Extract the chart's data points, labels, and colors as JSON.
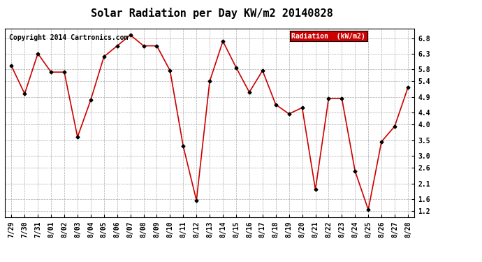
{
  "title": "Solar Radiation per Day KW/m2 20140828",
  "copyright": "Copyright 2014 Cartronics.com",
  "legend_label": "Radiation  (kW/m2)",
  "dates": [
    "7/29",
    "7/30",
    "7/31",
    "8/01",
    "8/02",
    "8/03",
    "8/04",
    "8/05",
    "8/06",
    "8/07",
    "8/08",
    "8/09",
    "8/10",
    "8/11",
    "8/12",
    "8/13",
    "8/14",
    "8/15",
    "8/16",
    "8/17",
    "8/18",
    "8/19",
    "8/20",
    "8/21",
    "8/22",
    "8/23",
    "8/24",
    "8/25",
    "8/26",
    "8/27",
    "8/28"
  ],
  "values": [
    5.9,
    5.0,
    6.3,
    5.7,
    5.7,
    3.6,
    4.8,
    6.2,
    6.55,
    6.9,
    6.55,
    6.55,
    5.75,
    3.3,
    1.55,
    5.4,
    6.7,
    5.85,
    5.05,
    5.75,
    4.65,
    4.35,
    4.55,
    1.9,
    4.85,
    4.85,
    2.5,
    1.25,
    3.45,
    3.95,
    5.2
  ],
  "line_color": "#cc0000",
  "marker_color": "#000000",
  "marker_style": "D",
  "marker_size": 2.5,
  "line_width": 1.2,
  "ylim": [
    1.0,
    7.1
  ],
  "yticks": [
    1.2,
    1.6,
    2.1,
    2.6,
    3.0,
    3.5,
    4.0,
    4.4,
    4.9,
    5.4,
    5.8,
    6.3,
    6.8
  ],
  "background_color": "#ffffff",
  "plot_bg_color": "#ffffff",
  "grid_color": "#aaaaaa",
  "title_fontsize": 11,
  "tick_fontsize": 7,
  "legend_bg": "#cc0000",
  "legend_text_color": "#ffffff",
  "copyright_color": "#000000",
  "copyright_fontsize": 7
}
